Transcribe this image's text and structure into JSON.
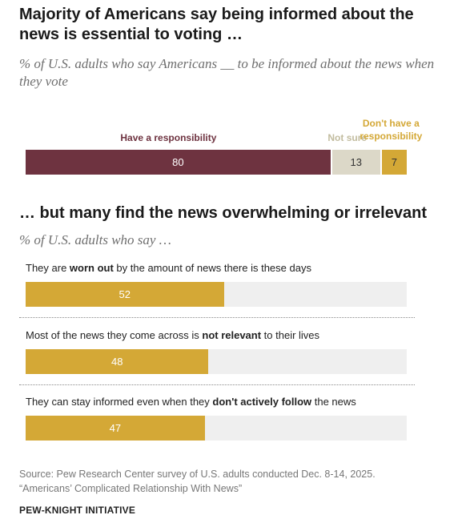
{
  "header": {
    "title": "Majority of Americans say being informed about the news is essential to voting …",
    "subtitle": "% of U.S. adults who say Americans __ to be informed about the news when they vote"
  },
  "section2": {
    "title": "… but many find the news overwhelming or irrelevant",
    "subtitle": "% of U.S. adults who say …"
  },
  "colors": {
    "responsibility": "#6e3340",
    "not_sure": "#dcd8c8",
    "dont_have": "#d4a836",
    "bar_bg": "#efefef"
  },
  "chart_data": [
    {
      "type": "bar",
      "stacked": true,
      "orientation": "horizontal",
      "series": [
        {
          "name": "Have a responsibility",
          "values": [
            80
          ]
        },
        {
          "name": "Not sure",
          "values": [
            13
          ]
        },
        {
          "name": "Don't have a responsibility",
          "values": [
            7
          ]
        }
      ],
      "xlim": [
        0,
        100
      ]
    },
    {
      "type": "bar",
      "orientation": "horizontal",
      "items": [
        {
          "pre": "They are ",
          "bold": "worn out",
          "post": " by the amount of news there is these days",
          "value": 52
        },
        {
          "pre": "Most of the news they come across is ",
          "bold": "not relevant",
          "post": " to their lives",
          "value": 48
        },
        {
          "pre": "They can stay informed even when they ",
          "bold": "don't actively follow",
          "post": " the news",
          "value": 47
        }
      ],
      "xlim": [
        0,
        100
      ]
    }
  ],
  "labels": {
    "have": "Have a responsibility",
    "not_sure": "Not sure",
    "dont_have_line1": "Don't have a",
    "dont_have_line2": "responsibility"
  },
  "footer": {
    "source_line1": "Source: Pew Research Center survey of U.S. adults conducted Dec. 8-14, 2025.",
    "source_line2": "“Americans’ Complicated Relationship With News”",
    "brand": "PEW-KNIGHT INITIATIVE"
  }
}
